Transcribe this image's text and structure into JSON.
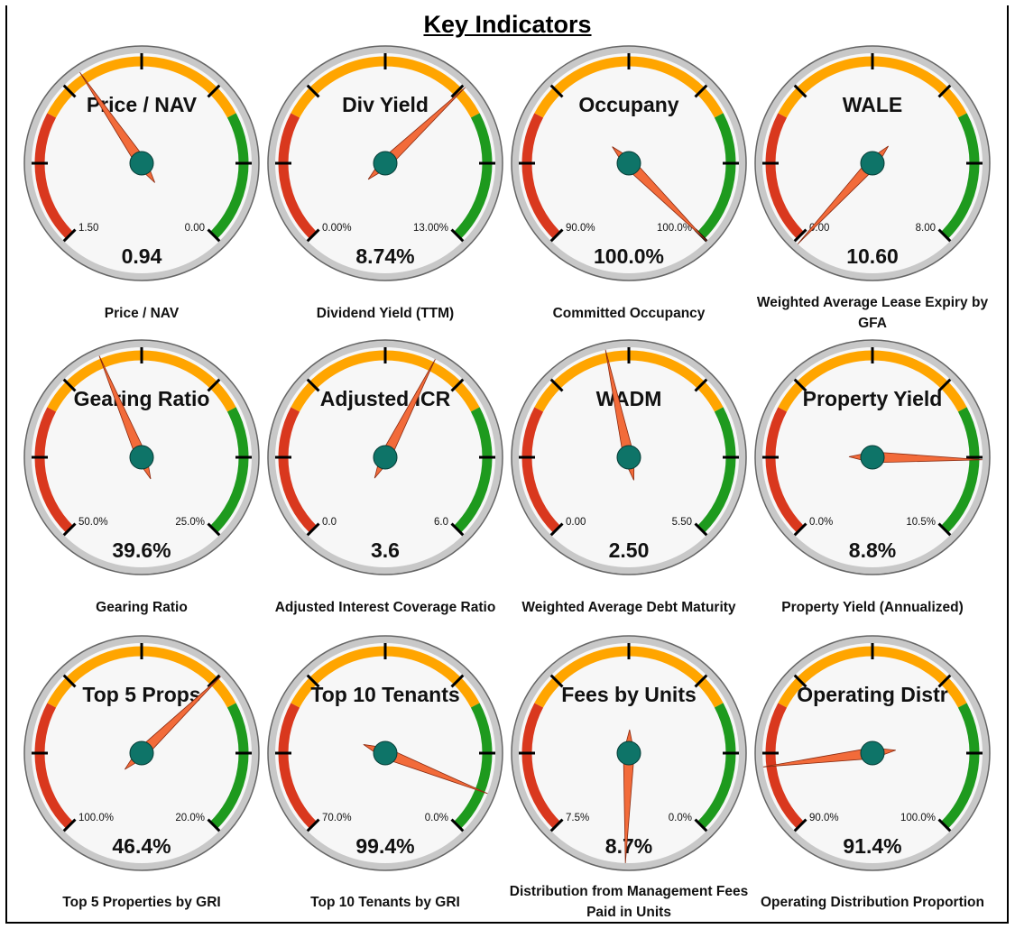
{
  "title": "Key Indicators",
  "gauges": [
    {
      "name": "Price / NAV",
      "min": {
        "value": 1.5,
        "label": "1.50"
      },
      "max": {
        "value": 0,
        "label": "0.00"
      },
      "reading": {
        "value": 0.94,
        "label": "0.94"
      },
      "caption": "Price / NAV"
    },
    {
      "name": "Div Yield",
      "min": {
        "value": 0,
        "label": "0.00%"
      },
      "max": {
        "value": 13,
        "label": "13.00%"
      },
      "reading": {
        "value": 8.74,
        "label": "8.74%"
      },
      "caption": "Dividend Yield (TTM)"
    },
    {
      "name": "Occupany",
      "min": {
        "value": 90,
        "label": "90.0%"
      },
      "max": {
        "value": 100,
        "label": "100.0%"
      },
      "reading": {
        "value": 100,
        "label": "100.0%"
      },
      "caption": "Committed Occupancy"
    },
    {
      "name": "WALE",
      "min": {
        "value": 0,
        "label": "0.00"
      },
      "max": {
        "value": 8,
        "label": "8.00"
      },
      "reading": {
        "value": 10.6,
        "label": "10.60"
      },
      "caption": "Weighted Average Lease Expiry by GFA"
    },
    {
      "name": "Gearing Ratio",
      "min": {
        "value": 50,
        "label": "50.0%"
      },
      "max": {
        "value": 25,
        "label": "25.0%"
      },
      "reading": {
        "value": 39.6,
        "label": "39.6%"
      },
      "caption": "Gearing Ratio"
    },
    {
      "name": "Adjusted ICR",
      "min": {
        "value": 0,
        "label": "0.0"
      },
      "max": {
        "value": 6,
        "label": "6.0"
      },
      "reading": {
        "value": 3.6,
        "label": "3.6"
      },
      "caption": "Adjusted Interest Coverage Ratio"
    },
    {
      "name": "WADM",
      "min": {
        "value": 0,
        "label": "0.00"
      },
      "max": {
        "value": 5.5,
        "label": "5.50"
      },
      "reading": {
        "value": 2.5,
        "label": "2.50"
      },
      "caption": "Weighted Average Debt Maturity"
    },
    {
      "name": "Property Yield",
      "min": {
        "value": 0,
        "label": "0.0%"
      },
      "max": {
        "value": 10.5,
        "label": "10.5%"
      },
      "reading": {
        "value": 8.8,
        "label": "8.8%"
      },
      "caption": "Property Yield (Annualized)"
    },
    {
      "name": "Top 5 Props",
      "min": {
        "value": 100,
        "label": "100.0%"
      },
      "max": {
        "value": 20,
        "label": "20.0%"
      },
      "reading": {
        "value": 46.4,
        "label": "46.4%"
      },
      "caption": "Top 5 Properties by GRI"
    },
    {
      "name": "Top 10 Tenants",
      "min": {
        "value": 70,
        "label": "70.0%"
      },
      "max": {
        "value": 0,
        "label": "0.0%"
      },
      "reading": {
        "value": 99.4,
        "label": "99.4%"
      },
      "caption": "Top 10 Tenants by GRI"
    },
    {
      "name": "Fees by Units",
      "min": {
        "value": 7.5,
        "label": "7.5%"
      },
      "max": {
        "value": 0,
        "label": "0.0%"
      },
      "reading": {
        "value": 8.7,
        "label": "8.7%"
      },
      "caption": "Distribution from Management Fees Paid in Units"
    },
    {
      "name": "Operating Distr",
      "min": {
        "value": 90,
        "label": "90.0%"
      },
      "max": {
        "value": 100,
        "label": "100.0%"
      },
      "reading": {
        "value": 91.4,
        "label": "91.4%"
      },
      "caption": "Operating Distribution Proportion"
    }
  ]
}
